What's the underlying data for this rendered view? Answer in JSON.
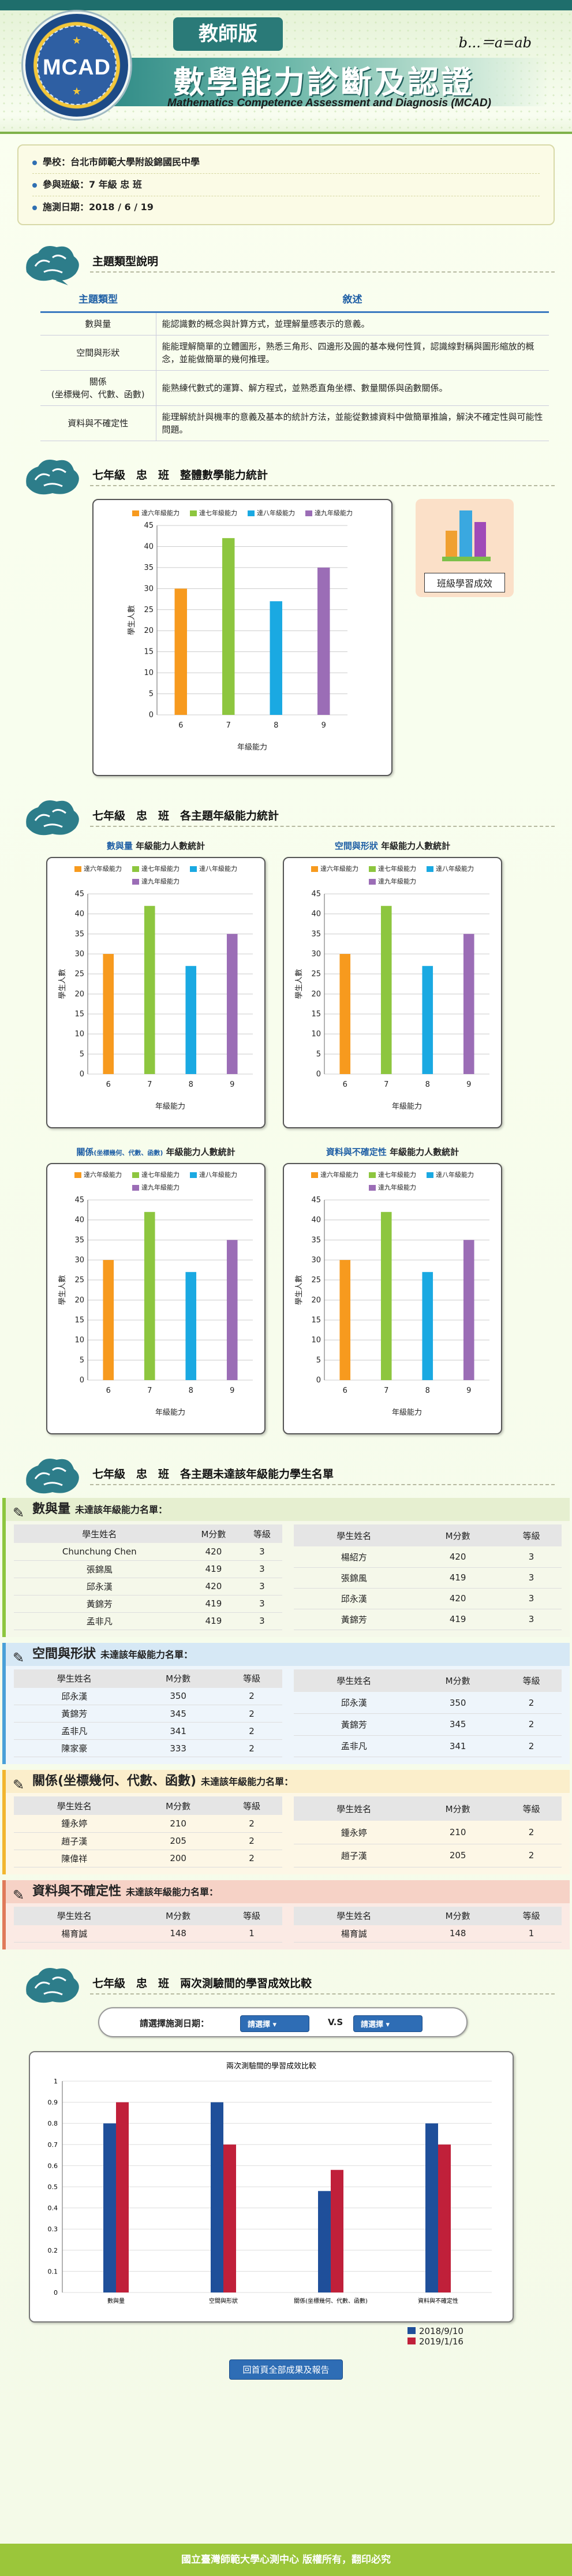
{
  "header": {
    "logo_text": "MCAD",
    "edition": "教師版",
    "formula": "b...＝a=ab",
    "title": "數學能力診斷及認證",
    "subtitle": "Mathematics Competence Assessment and  Diagnosis (MCAD)"
  },
  "info": {
    "school": "學校：台北市師範大學附設錦國民中學",
    "class": "參與班級：7 年級 忠 班",
    "date": "施測日期：2018 / 6 / 19"
  },
  "topics": {
    "title": "主題類型說明",
    "col_type": "主題類型",
    "col_desc": "敘述",
    "rows": [
      {
        "type": "數與量",
        "desc": "能認識數的概念與計算方式，並理解量感表示的意義。"
      },
      {
        "type": "空間與形狀",
        "desc": "能能理解簡單的立體圖形，熟悉三角形、四邊形及圓的基本幾何性質，認識線對稱與圖形縮放的概念，並能做簡單的幾何推理。"
      },
      {
        "type": "關係\n(坐標幾何、代數、函數)",
        "desc": "能熟練代數式的運算、解方程式，並熟悉直角坐標、數量關係與函數關係。"
      },
      {
        "type": "資料與不確定性",
        "desc": "能理解統計與機率的意義及基本的統計方法，並能從數據資料中做簡單推論，解決不確定性與可能性問題。"
      }
    ]
  },
  "overall": {
    "title": "七年級　忠　班　整體數學能力統計",
    "button": "班級學習成效"
  },
  "legend": [
    "達六年級能力",
    "達七年級能力",
    "達八年級能力",
    "達九年級能力"
  ],
  "colors": {
    "c6": "#f79a1e",
    "c7": "#8dc63f",
    "c8": "#1aa9e2",
    "c9": "#9b6db6",
    "blue": "#1f4f9a",
    "red": "#c0203a",
    "accent": "#2a7a78"
  },
  "subjects_section": {
    "title": "七年級　忠　班　各主題年級能力統計",
    "charts": [
      {
        "name": "數與量",
        "suffix": "年級能力人數統計"
      },
      {
        "name": "空間與形狀",
        "suffix": "年級能力人數統計"
      },
      {
        "name": "關係",
        "note": "(坐標幾何、代數、函數)",
        "suffix": "年級能力人數統計"
      },
      {
        "name": "資料與不確定性",
        "suffix": "年級能力人數統計"
      }
    ]
  },
  "chart_data": [
    {
      "type": "bar",
      "categories": [
        "6",
        "7",
        "8",
        "9"
      ],
      "values": [
        30,
        42,
        27,
        35
      ],
      "xlabel": "年級能力",
      "ylabel": "學生人數",
      "ylim": [
        0,
        45
      ]
    },
    {
      "type": "bar",
      "categories": [
        "6",
        "7",
        "8",
        "9"
      ],
      "values": [
        30,
        42,
        27,
        35
      ],
      "xlabel": "年級能力",
      "ylabel": "學生人數",
      "ylim": [
        0,
        45
      ]
    },
    {
      "type": "bar",
      "categories": [
        "6",
        "7",
        "8",
        "9"
      ],
      "values": [
        30,
        42,
        27,
        35
      ],
      "xlabel": "年級能力",
      "ylabel": "學生人數",
      "ylim": [
        0,
        45
      ]
    },
    {
      "type": "bar",
      "categories": [
        "6",
        "7",
        "8",
        "9"
      ],
      "values": [
        30,
        42,
        27,
        35
      ],
      "xlabel": "年級能力",
      "ylabel": "學生人數",
      "ylim": [
        0,
        45
      ]
    },
    {
      "type": "bar",
      "categories": [
        "6",
        "7",
        "8",
        "9"
      ],
      "values": [
        30,
        42,
        27,
        35
      ],
      "xlabel": "年級能力",
      "ylabel": "學生人數",
      "ylim": [
        0,
        45
      ]
    },
    {
      "type": "bar",
      "title": "兩次測驗間的學習成效比較",
      "categories": [
        "數與量",
        "空間與形狀",
        "關係(坐標幾何、代數、函數)",
        "資料與不確定性"
      ],
      "series": [
        {
          "name": "2018/9/10",
          "values": [
            0.8,
            0.9,
            0.48,
            0.8
          ]
        },
        {
          "name": "2019/1/16",
          "values": [
            0.9,
            0.7,
            0.58,
            0.7
          ]
        }
      ],
      "ylim": [
        0,
        1
      ]
    }
  ],
  "list_section": {
    "title": "七年級　忠　班　各主題未達該年級能力學生名單",
    "col_name": "學生姓名",
    "col_score": "M分數",
    "col_level": "等級",
    "suffix": "未達該年級能力名單：",
    "categories": [
      {
        "name": "數與量",
        "left": [
          [
            "Chunchung Chen",
            "420",
            "3"
          ],
          [
            "張錦風",
            "419",
            "3"
          ],
          [
            "邱永漢",
            "420",
            "3"
          ],
          [
            "黃錦芳",
            "419",
            "3"
          ],
          [
            "孟非凡",
            "419",
            "3"
          ]
        ],
        "right": [
          [
            "楊紹方",
            "420",
            "3"
          ],
          [
            "張錦風",
            "419",
            "3"
          ],
          [
            "邱永漢",
            "420",
            "3"
          ],
          [
            "黃錦芳",
            "419",
            "3"
          ]
        ]
      },
      {
        "name": "空間與形狀",
        "left": [
          [
            "邱永漢",
            "350",
            "2"
          ],
          [
            "黃錦芳",
            "345",
            "2"
          ],
          [
            "孟非凡",
            "341",
            "2"
          ],
          [
            "陳家豪",
            "333",
            "2"
          ]
        ],
        "right": [
          [
            "邱永漢",
            "350",
            "2"
          ],
          [
            "黃錦芳",
            "345",
            "2"
          ],
          [
            "孟非凡",
            "341",
            "2"
          ]
        ]
      },
      {
        "name": "關係(坐標幾何、代數、函數)",
        "left": [
          [
            "鍾永婷",
            "210",
            "2"
          ],
          [
            "趙子漢",
            "205",
            "2"
          ],
          [
            "陳偉祥",
            "200",
            "2"
          ]
        ],
        "right": [
          [
            "鍾永婷",
            "210",
            "2"
          ],
          [
            "趙子漢",
            "205",
            "2"
          ]
        ]
      },
      {
        "name": "資料與不確定性",
        "left": [
          [
            "楊育誠",
            "148",
            "1"
          ]
        ],
        "right": [
          [
            "楊育誠",
            "148",
            "1"
          ]
        ]
      }
    ]
  },
  "compare": {
    "title": "七年級　忠　班　兩次測驗間的學習成效比較",
    "select_label": "請選擇施測日期：",
    "select_a": "請選擇",
    "select_b": "請選擇",
    "vs": "V.S",
    "button": "回首頁全部成果及報告"
  },
  "footer": "國立臺灣師範大學心測中心 版權所有，翻印必究"
}
